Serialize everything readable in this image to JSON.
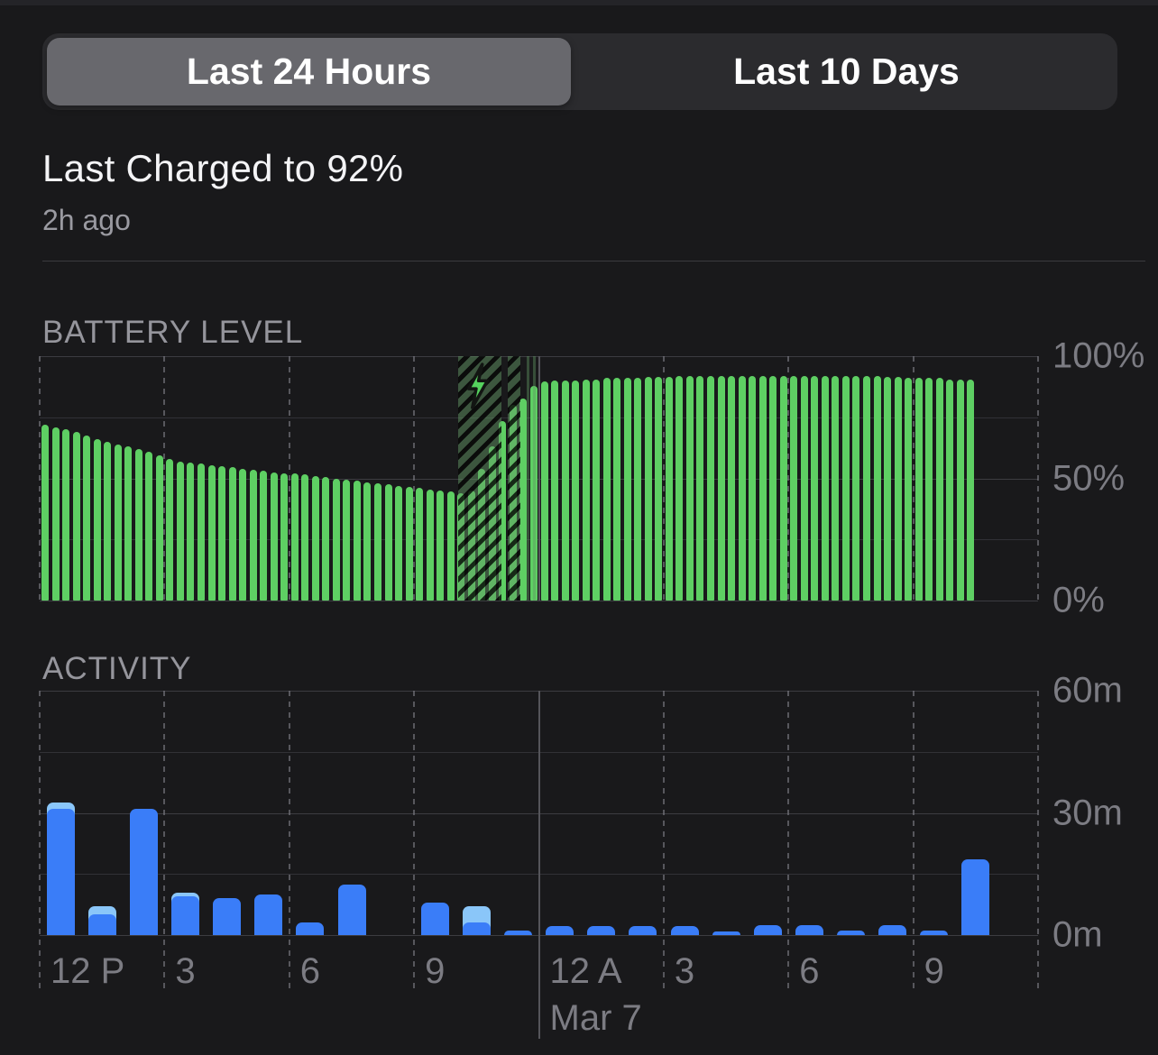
{
  "tabs": {
    "last_24_hours": "Last 24 Hours",
    "last_10_days": "Last 10 Days",
    "selected": "Last 24 Hours"
  },
  "charge_summary": {
    "title": "Last Charged to 92%",
    "subtitle": "2h ago"
  },
  "battery_section": {
    "title": "BATTERY LEVEL"
  },
  "activity_section": {
    "title": "ACTIVITY"
  },
  "colors": {
    "battery_green": "#5ecf63",
    "charging_hatch_green": "#3f5942",
    "activity_blue": "#3a7df8",
    "activity_light_blue": "#8ac6f9",
    "axis_label_gray": "#7c7c83",
    "selected_segment_gray": "#68686d",
    "segment_container": "#2b2b2e",
    "background": "#19191b"
  },
  "chart_data": [
    {
      "name": "battery_level",
      "type": "bar",
      "title": "BATTERY LEVEL",
      "unit": "percent",
      "interval": "15min",
      "x_range": "12 PM Mar 6 to 12 PM Mar 7 (bars end ~10:15 AM)",
      "ylim": [
        0,
        100
      ],
      "y_tick_labels": [
        "100%",
        "50%",
        "0%"
      ],
      "y_tick_values": [
        100,
        50,
        0
      ],
      "slots_total": 96,
      "values": [
        72,
        71,
        70,
        69,
        67.5,
        66,
        65,
        64,
        63,
        62,
        61,
        59.5,
        58,
        57,
        56.5,
        56,
        55.5,
        55,
        54.5,
        54,
        53.5,
        53,
        52.5,
        52,
        52,
        51.5,
        51,
        50.5,
        50,
        49.5,
        49,
        48.5,
        48,
        47.5,
        47,
        46.5,
        46,
        45.5,
        45,
        44.5,
        44,
        45,
        54,
        63,
        73.5,
        80,
        82.5,
        88,
        89.5,
        90,
        90,
        90,
        90.5,
        90.5,
        91,
        91,
        91,
        91,
        91.5,
        91.5,
        91.5,
        92,
        92,
        92,
        92,
        92,
        92,
        92,
        92,
        92,
        92,
        92,
        92,
        92,
        92,
        92,
        92,
        92,
        92,
        92,
        92,
        91.5,
        91.5,
        91,
        91,
        91,
        91,
        90.5,
        90.5,
        90.5
      ],
      "charging_segments": [
        {
          "from": 40.2,
          "to": 44.4
        },
        {
          "from": 45.0,
          "to": 46.2
        },
        {
          "from": 46.8,
          "to": 47.1,
          "thin": true
        },
        {
          "from": 47.4,
          "to": 47.7,
          "thin": true
        }
      ],
      "bolt_index": 42.1
    },
    {
      "name": "activity",
      "type": "stacked-bar",
      "title": "ACTIVITY",
      "unit": "minutes",
      "interval": "1h",
      "ylim": [
        0,
        60
      ],
      "y_tick_labels": [
        "60m",
        "30m",
        "0m"
      ],
      "y_tick_values": [
        60,
        30,
        0
      ],
      "categories": [
        "12 PM",
        "1 PM",
        "2 PM",
        "3 PM",
        "4 PM",
        "5 PM",
        "6 PM",
        "7 PM",
        "8 PM",
        "9 PM",
        "10 PM",
        "11 PM",
        "12 AM",
        "1 AM",
        "2 AM",
        "3 AM",
        "4 AM",
        "5 AM",
        "6 AM",
        "7 AM",
        "8 AM",
        "9 AM",
        "10 AM"
      ],
      "series": [
        {
          "name": "screen-on",
          "color": "#3a7df8",
          "values": [
            31,
            5,
            31,
            9.5,
            9,
            10,
            3,
            12.5,
            0,
            8,
            3,
            1,
            2.2,
            2.2,
            2.2,
            2.2,
            0.8,
            2.5,
            2.5,
            1,
            2.5,
            1.2,
            18.5
          ]
        },
        {
          "name": "screen-off",
          "color": "#8ac6f9",
          "values": [
            1.5,
            2,
            0,
            1,
            0,
            0,
            0,
            0,
            0,
            0,
            4,
            0,
            0,
            0,
            0,
            0,
            0,
            0,
            0,
            0,
            0,
            0,
            0
          ]
        }
      ]
    }
  ],
  "x_axis": {
    "tick_labels": [
      "12 P",
      "3",
      "6",
      "9",
      "12 A",
      "3",
      "6",
      "9"
    ],
    "day_label": "Mar 7",
    "midnight_line_index": 4
  }
}
